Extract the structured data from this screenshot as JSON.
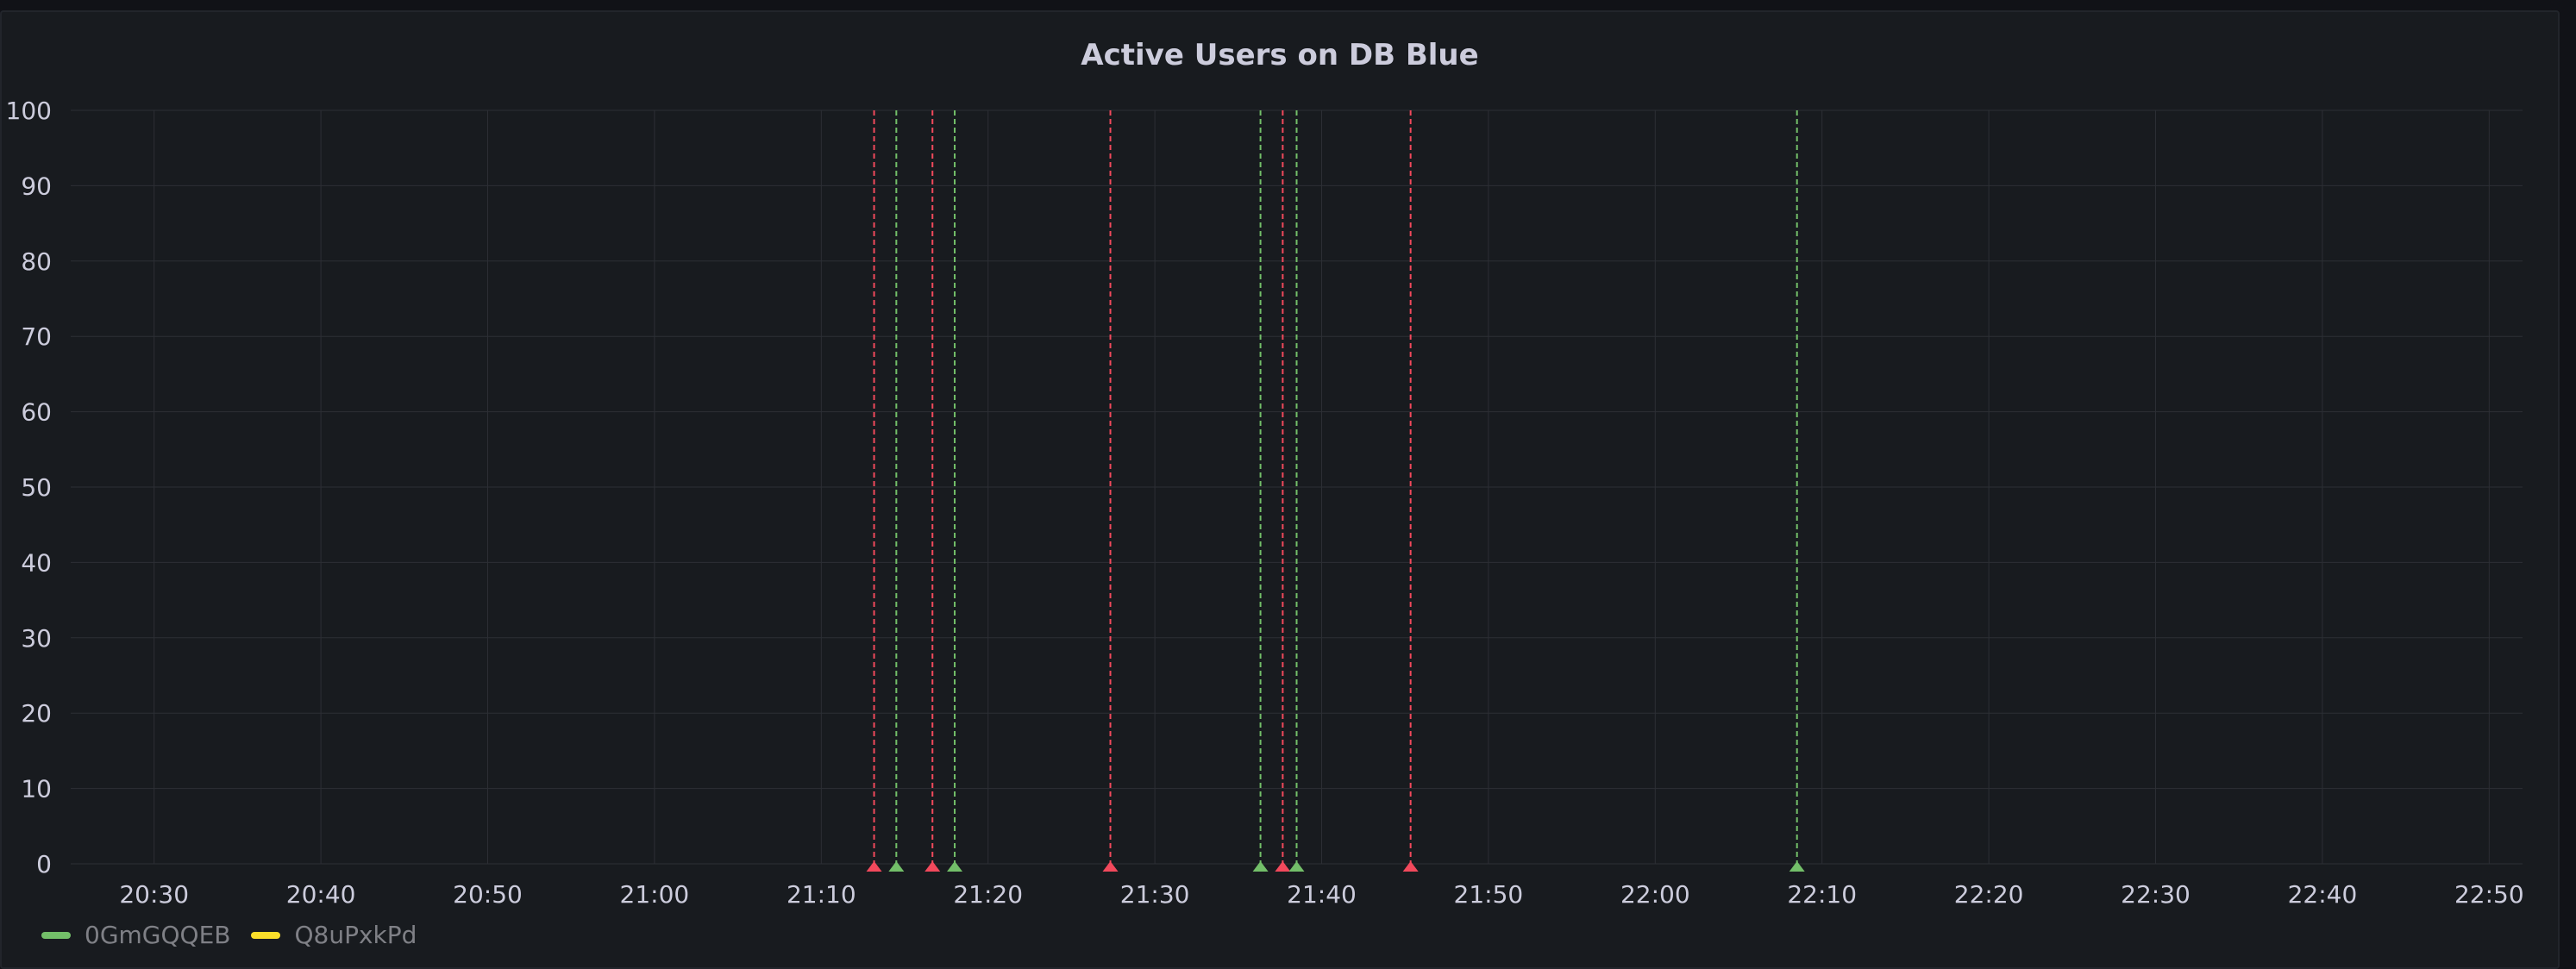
{
  "panel": {
    "title": "Active Users on DB Blue"
  },
  "colors": {
    "background": "#181b1f",
    "grid": "#2c2f35",
    "axis_text": "#ccccdc",
    "annotation_red": "#f2495c",
    "annotation_green": "#73bf69"
  },
  "chart_data": {
    "type": "line",
    "title": "Active Users on DB Blue",
    "xlabel": "",
    "ylabel": "",
    "ylim": [
      0,
      100
    ],
    "yticks": [
      "0",
      "10",
      "20",
      "30",
      "40",
      "50",
      "60",
      "70",
      "80",
      "90",
      "100"
    ],
    "xlim": [
      "20:25",
      "22:52"
    ],
    "xticks": [
      "20:30",
      "20:40",
      "20:50",
      "21:00",
      "21:10",
      "21:20",
      "21:30",
      "21:40",
      "21:50",
      "22:00",
      "22:10",
      "22:20",
      "22:30",
      "22:40",
      "22:50"
    ],
    "grid": true,
    "legend_position": "bottom-left",
    "series": [
      {
        "name": "0GmGQQEB",
        "color": "#73bf69",
        "values": []
      },
      {
        "name": "Q8uPxkPd",
        "color": "#fade2a",
        "values": []
      }
    ],
    "annotations": [
      {
        "time": "21:13:10",
        "color": "red"
      },
      {
        "time": "21:14:30",
        "color": "green"
      },
      {
        "time": "21:16:40",
        "color": "red"
      },
      {
        "time": "21:18:00",
        "color": "green"
      },
      {
        "time": "21:27:20",
        "color": "red"
      },
      {
        "time": "21:36:20",
        "color": "green"
      },
      {
        "time": "21:37:40",
        "color": "red"
      },
      {
        "time": "21:38:30",
        "color": "green"
      },
      {
        "time": "21:45:20",
        "color": "red"
      },
      {
        "time": "22:08:30",
        "color": "green"
      }
    ]
  }
}
